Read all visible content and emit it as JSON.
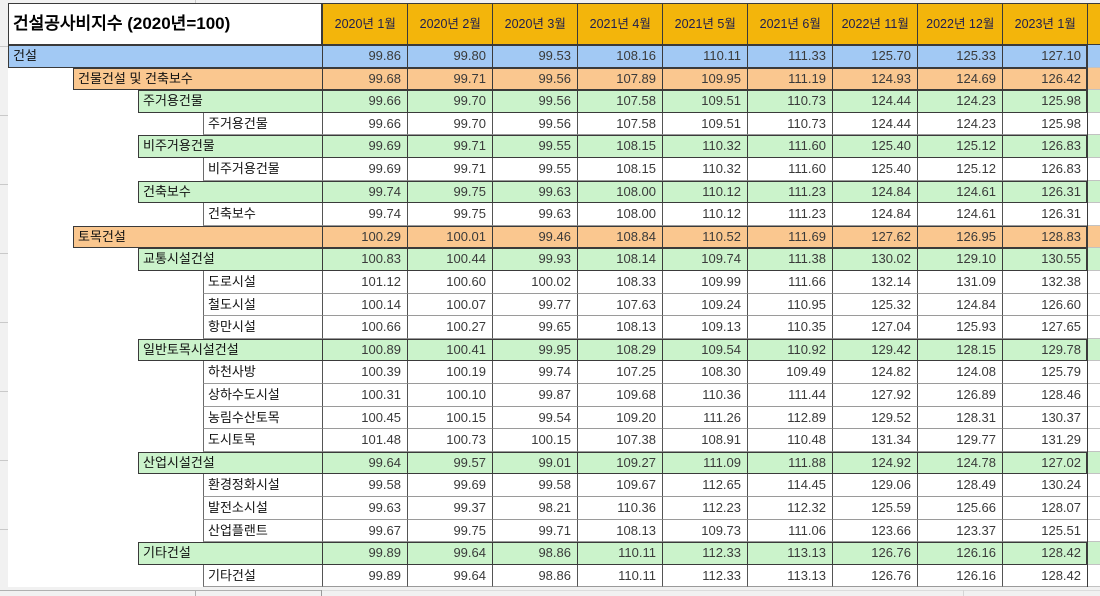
{
  "app": {
    "kind": "spreadsheet-table"
  },
  "title": "건설공사비지수 (2020년=100)",
  "columns": [
    "2020년 1월",
    "2020년 2월",
    "2020년 3월",
    "2021년 4월",
    "2021년 5월",
    "2021년 6월",
    "2022년 11월",
    "2022년 12월",
    "2023년 1월"
  ],
  "colors": {
    "header_bg": "#F3B50B",
    "header_text": "#1E1E50",
    "level0_bg": "#A2C9F4",
    "level1_bg": "#FAC78F",
    "level2_bg": "#CBF3CB",
    "white_bg": "#FFFFFF",
    "label_text": "#111111",
    "value_text": "#3A3A3A",
    "border_dark": "#3A3A3A",
    "border_grey": "#9A9A9A"
  },
  "rows": [
    {
      "label": "건설",
      "level": 0,
      "style": "blue",
      "values": [
        "99.86",
        "99.80",
        "99.53",
        "108.16",
        "110.11",
        "111.33",
        "125.70",
        "125.33",
        "127.10"
      ]
    },
    {
      "label": "건물건설 및 건축보수",
      "level": 1,
      "style": "peach",
      "values": [
        "99.68",
        "99.71",
        "99.56",
        "107.89",
        "109.95",
        "111.19",
        "124.93",
        "124.69",
        "126.42"
      ]
    },
    {
      "label": "주거용건물",
      "level": 2,
      "style": "green",
      "values": [
        "99.66",
        "99.70",
        "99.56",
        "107.58",
        "109.51",
        "110.73",
        "124.44",
        "124.23",
        "125.98"
      ]
    },
    {
      "label": "주거용건물",
      "level": 3,
      "style": "white",
      "values": [
        "99.66",
        "99.70",
        "99.56",
        "107.58",
        "109.51",
        "110.73",
        "124.44",
        "124.23",
        "125.98"
      ]
    },
    {
      "label": "비주거용건물",
      "level": 2,
      "style": "green",
      "values": [
        "99.69",
        "99.71",
        "99.55",
        "108.15",
        "110.32",
        "111.60",
        "125.40",
        "125.12",
        "126.83"
      ]
    },
    {
      "label": "비주거용건물",
      "level": 3,
      "style": "white",
      "values": [
        "99.69",
        "99.71",
        "99.55",
        "108.15",
        "110.32",
        "111.60",
        "125.40",
        "125.12",
        "126.83"
      ]
    },
    {
      "label": "건축보수",
      "level": 2,
      "style": "green",
      "values": [
        "99.74",
        "99.75",
        "99.63",
        "108.00",
        "110.12",
        "111.23",
        "124.84",
        "124.61",
        "126.31"
      ]
    },
    {
      "label": "건축보수",
      "level": 3,
      "style": "white",
      "values": [
        "99.74",
        "99.75",
        "99.63",
        "108.00",
        "110.12",
        "111.23",
        "124.84",
        "124.61",
        "126.31"
      ]
    },
    {
      "label": "토목건설",
      "level": 1,
      "style": "peach",
      "values": [
        "100.29",
        "100.01",
        "99.46",
        "108.84",
        "110.52",
        "111.69",
        "127.62",
        "126.95",
        "128.83"
      ]
    },
    {
      "label": "교통시설건설",
      "level": 2,
      "style": "green",
      "values": [
        "100.83",
        "100.44",
        "99.93",
        "108.14",
        "109.74",
        "111.38",
        "130.02",
        "129.10",
        "130.55"
      ]
    },
    {
      "label": "도로시설",
      "level": 3,
      "style": "white",
      "values": [
        "101.12",
        "100.60",
        "100.02",
        "108.33",
        "109.99",
        "111.66",
        "132.14",
        "131.09",
        "132.38"
      ]
    },
    {
      "label": "철도시설",
      "level": 3,
      "style": "white",
      "values": [
        "100.14",
        "100.07",
        "99.77",
        "107.63",
        "109.24",
        "110.95",
        "125.32",
        "124.84",
        "126.60"
      ]
    },
    {
      "label": "항만시설",
      "level": 3,
      "style": "white",
      "values": [
        "100.66",
        "100.27",
        "99.65",
        "108.13",
        "109.13",
        "110.35",
        "127.04",
        "125.93",
        "127.65"
      ]
    },
    {
      "label": "일반토목시설건설",
      "level": 2,
      "style": "green",
      "values": [
        "100.89",
        "100.41",
        "99.95",
        "108.29",
        "109.54",
        "110.92",
        "129.42",
        "128.15",
        "129.78"
      ]
    },
    {
      "label": "하천사방",
      "level": 3,
      "style": "white",
      "values": [
        "100.39",
        "100.19",
        "99.74",
        "107.25",
        "108.30",
        "109.49",
        "124.82",
        "124.08",
        "125.79"
      ]
    },
    {
      "label": "상하수도시설",
      "level": 3,
      "style": "white",
      "values": [
        "100.31",
        "100.10",
        "99.87",
        "109.68",
        "110.36",
        "111.44",
        "127.92",
        "126.89",
        "128.46"
      ]
    },
    {
      "label": "농림수산토목",
      "level": 3,
      "style": "white",
      "values": [
        "100.45",
        "100.15",
        "99.54",
        "109.20",
        "111.26",
        "112.89",
        "129.52",
        "128.31",
        "130.37"
      ]
    },
    {
      "label": "도시토목",
      "level": 3,
      "style": "white",
      "values": [
        "101.48",
        "100.73",
        "100.15",
        "107.38",
        "108.91",
        "110.48",
        "131.34",
        "129.77",
        "131.29"
      ]
    },
    {
      "label": "산업시설건설",
      "level": 2,
      "style": "green",
      "values": [
        "99.64",
        "99.57",
        "99.01",
        "109.27",
        "111.09",
        "111.88",
        "124.92",
        "124.78",
        "127.02"
      ]
    },
    {
      "label": "환경정화시설",
      "level": 3,
      "style": "white",
      "values": [
        "99.58",
        "99.69",
        "99.58",
        "109.67",
        "112.65",
        "114.45",
        "129.06",
        "128.49",
        "130.24"
      ]
    },
    {
      "label": "발전소시설",
      "level": 3,
      "style": "white",
      "values": [
        "99.63",
        "99.37",
        "98.21",
        "110.36",
        "112.23",
        "112.32",
        "125.59",
        "125.66",
        "128.07"
      ]
    },
    {
      "label": "산업플랜트",
      "level": 3,
      "style": "white",
      "values": [
        "99.67",
        "99.75",
        "99.71",
        "108.13",
        "109.73",
        "111.06",
        "123.66",
        "123.37",
        "125.51"
      ]
    },
    {
      "label": "기타건설",
      "level": 2,
      "style": "green",
      "values": [
        "99.89",
        "99.64",
        "98.86",
        "110.11",
        "112.33",
        "113.13",
        "126.76",
        "126.16",
        "128.42"
      ]
    },
    {
      "label": "기타건설",
      "level": 3,
      "style": "white",
      "values": [
        "99.89",
        "99.64",
        "98.86",
        "110.11",
        "112.33",
        "113.13",
        "126.76",
        "126.16",
        "128.42"
      ]
    }
  ]
}
